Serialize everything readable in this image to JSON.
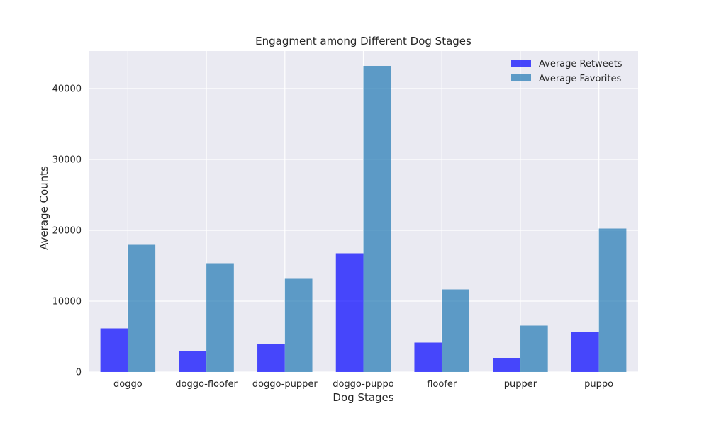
{
  "chart_data": {
    "type": "bar",
    "title": "Engagment among Different Dog Stages",
    "xlabel": "Dog Stages",
    "ylabel": "Average Counts",
    "categories": [
      "doggo",
      "doggo-floofer",
      "doggo-pupper",
      "doggo-puppo",
      "floofer",
      "pupper",
      "puppo"
    ],
    "series": [
      {
        "name": "Average Retweets",
        "color": "#0000ff",
        "opacity": 0.7,
        "values": [
          6150,
          2950,
          3950,
          16750,
          4150,
          2000,
          5650
        ]
      },
      {
        "name": "Average Favorites",
        "color": "#1f77b4",
        "opacity": 0.7,
        "values": [
          17950,
          15350,
          13150,
          43200,
          11650,
          6550,
          20250
        ]
      }
    ],
    "ylim": [
      0,
      45300
    ],
    "yticks": [
      0,
      10000,
      20000,
      30000,
      40000
    ],
    "ytick_labels": [
      "0",
      "10000",
      "20000",
      "30000",
      "40000"
    ],
    "grid": true,
    "legend_position": "top-right",
    "background": "#eaeaf2"
  }
}
